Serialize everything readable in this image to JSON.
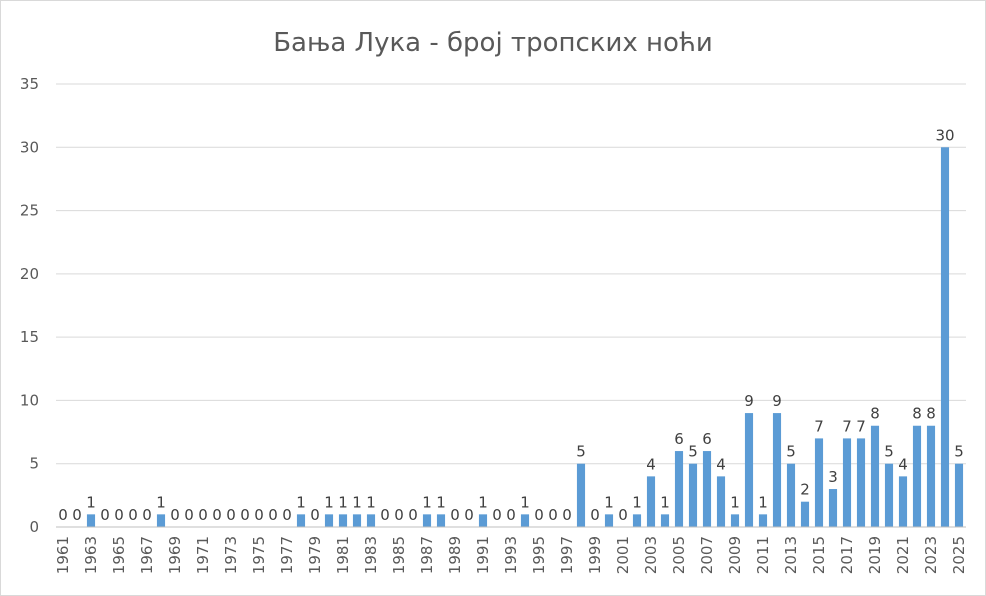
{
  "chart_data": {
    "type": "bar",
    "title": "Бања Лука - број тропских ноћи",
    "xlabel": "",
    "ylabel": "",
    "ylim": [
      0,
      35
    ],
    "yticks": [
      "0",
      "5",
      "10",
      "15",
      "20",
      "25",
      "30",
      "35"
    ],
    "grid": true,
    "legend": "none",
    "bar_color": "#5b9bd5",
    "categories": [
      "1961",
      "1962",
      "1963",
      "1964",
      "1965",
      "1966",
      "1967",
      "1968",
      "1969",
      "1970",
      "1971",
      "1972",
      "1973",
      "1974",
      "1975",
      "1976",
      "1977",
      "1978",
      "1979",
      "1980",
      "1981",
      "1982",
      "1983",
      "1984",
      "1985",
      "1986",
      "1987",
      "1988",
      "1989",
      "1990",
      "1991",
      "1992",
      "1993",
      "1994",
      "1995",
      "1996",
      "1997",
      "1998",
      "1999",
      "2000",
      "2001",
      "2002",
      "2003",
      "2004",
      "2005",
      "2006",
      "2007",
      "2008",
      "2009",
      "2010",
      "2011",
      "2012",
      "2013",
      "2014",
      "2015",
      "2016",
      "2017",
      "2018",
      "2019",
      "2020",
      "2021",
      "2022",
      "2023",
      "2024",
      "2025"
    ],
    "tick_labels": [
      "1961",
      "1963",
      "1965",
      "1967",
      "1969",
      "1971",
      "1973",
      "1975",
      "1977",
      "1979",
      "1981",
      "1983",
      "1985",
      "1987",
      "1989",
      "1991",
      "1993",
      "1995",
      "1997",
      "1999",
      "2001",
      "2003",
      "2005",
      "2007",
      "2009",
      "2011",
      "2013",
      "2015",
      "2017",
      "2019",
      "2021",
      "2023",
      "2025"
    ],
    "values": [
      0,
      0,
      1,
      0,
      0,
      0,
      0,
      1,
      0,
      0,
      0,
      0,
      0,
      0,
      0,
      0,
      0,
      1,
      0,
      1,
      1,
      1,
      1,
      0,
      0,
      0,
      1,
      1,
      0,
      0,
      1,
      0,
      0,
      1,
      0,
      0,
      0,
      5,
      0,
      1,
      0,
      1,
      4,
      1,
      6,
      5,
      6,
      4,
      1,
      9,
      1,
      9,
      5,
      2,
      7,
      3,
      7,
      7,
      8,
      5,
      4,
      8,
      8,
      30,
      5
    ],
    "data_labels": [
      "0",
      "0",
      "1",
      "0",
      "0",
      "0",
      "0",
      "1",
      "0",
      "0",
      "0",
      "0",
      "0",
      "0",
      "0",
      "0",
      "0",
      "1",
      "0",
      "1",
      "1",
      "1",
      "1",
      "0",
      "0",
      "0",
      "1",
      "1",
      "0",
      "0",
      "1",
      "0",
      "0",
      "1",
      "0",
      "0",
      "0",
      "5",
      "0",
      "1",
      "0",
      "1",
      "4",
      "1",
      "6",
      "5",
      "6",
      "4",
      "1",
      "9",
      "1",
      "9",
      "5",
      "2",
      "7",
      "3",
      "7",
      "7",
      "8",
      "5",
      "4",
      "8",
      "8",
      "30",
      "5"
    ]
  }
}
